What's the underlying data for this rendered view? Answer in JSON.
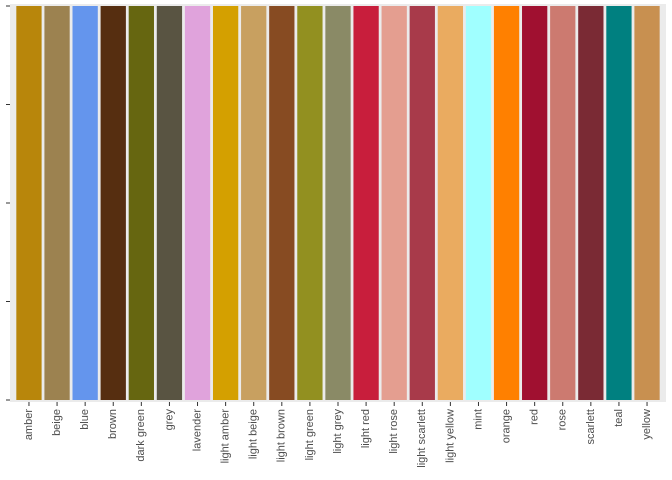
{
  "chart_data": {
    "type": "bar",
    "categories": [
      "amber",
      "beige",
      "blue",
      "brown",
      "dark green",
      "grey",
      "lavender",
      "light amber",
      "light beige",
      "light brown",
      "light green",
      "light grey",
      "light red",
      "light rose",
      "light scarlett",
      "light yellow",
      "mint",
      "orange",
      "red",
      "rose",
      "scarlett",
      "teal",
      "yellow"
    ],
    "values": [
      1,
      1,
      1,
      1,
      1,
      1,
      1,
      1,
      1,
      1,
      1,
      1,
      1,
      1,
      1,
      1,
      1,
      1,
      1,
      1,
      1,
      1,
      1
    ],
    "colors": [
      "#b8860b",
      "#9c8250",
      "#6495ed",
      "#562e10",
      "#666610",
      "#595442",
      "#e0a3dc",
      "#d4a000",
      "#c8a060",
      "#874b22",
      "#929020",
      "#8a8a66",
      "#c81e3c",
      "#e49e90",
      "#a83a4a",
      "#eaab60",
      "#a0ffff",
      "#ff8000",
      "#a01030",
      "#cc7a70",
      "#7a2a34",
      "#008080",
      "#c89050"
    ],
    "ylim": [
      0,
      1
    ],
    "yticks": [
      0,
      0.25,
      0.5,
      0.75,
      1
    ]
  }
}
